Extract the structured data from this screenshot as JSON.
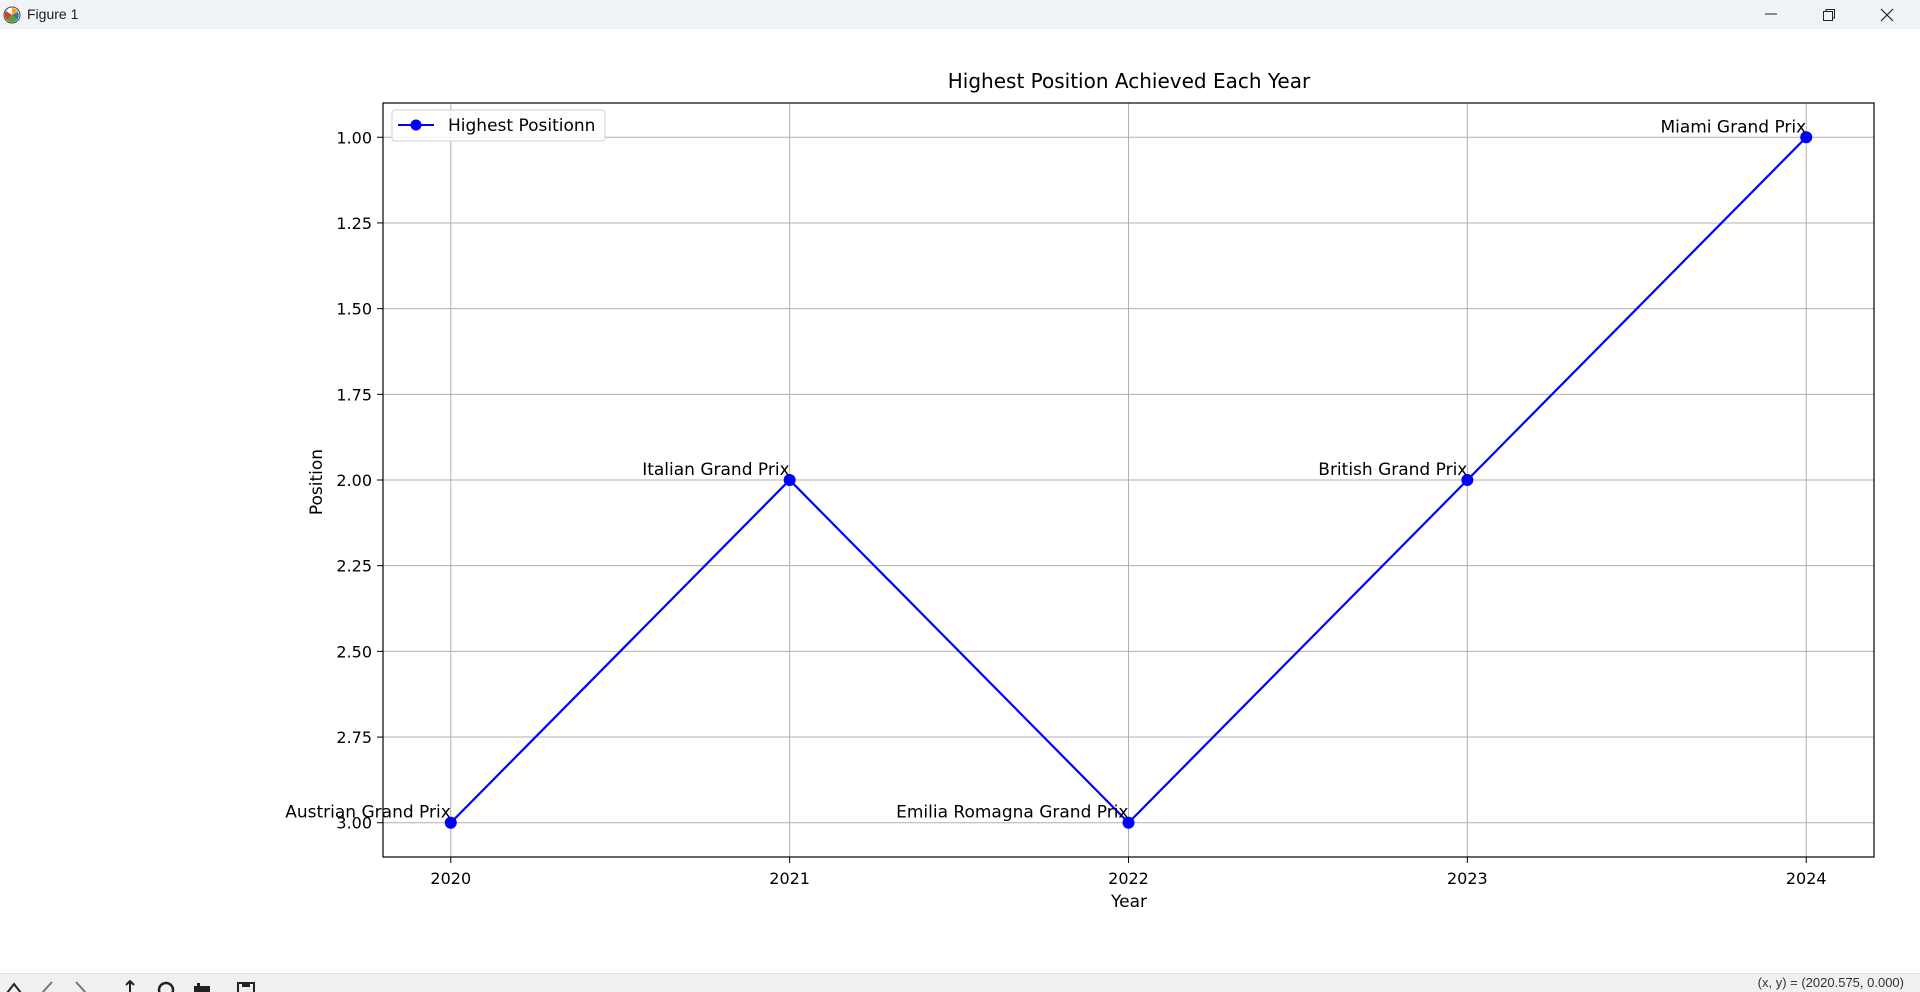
{
  "window": {
    "title": "Figure 1",
    "icon": "matplotlib-icon"
  },
  "window_controls": [
    "minimize-icon",
    "maximize-icon",
    "close-icon"
  ],
  "toolbar": {
    "tools": [
      "home-icon",
      "back-icon",
      "forward-icon",
      "pan-icon",
      "zoom-icon",
      "configure-icon",
      "save-icon"
    ],
    "coords_text": "(x, y) = (2020.575, 0.000)"
  },
  "chart_data": {
    "type": "line",
    "title": "Highest Position Achieved Each Year",
    "xlabel": "Year",
    "ylabel": "Position",
    "x": [
      2020,
      2021,
      2022,
      2023,
      2024
    ],
    "xlim": [
      2019.8,
      2024.2
    ],
    "ylim": [
      3.1,
      0.9
    ],
    "y_inverted": true,
    "xticks": [
      "2020",
      "2021",
      "2022",
      "2023",
      "2024"
    ],
    "yticks": [
      "1.00",
      "1.25",
      "1.50",
      "1.75",
      "2.00",
      "2.25",
      "2.50",
      "2.75",
      "3.00"
    ],
    "ytick_values": [
      1.0,
      1.25,
      1.5,
      1.75,
      2.0,
      2.25,
      2.5,
      2.75,
      3.0
    ],
    "grid": true,
    "legend": "top-left",
    "series": [
      {
        "name": "Highest Positionn",
        "color": "#0000ff",
        "marker": "circle",
        "values": [
          3,
          2,
          3,
          2,
          1
        ]
      }
    ],
    "annotations": [
      "Austrian Grand Prix",
      "Italian Grand Prix",
      "Emilia Romagna Grand Prix",
      "British Grand Prix",
      "Miami Grand Prix"
    ]
  }
}
